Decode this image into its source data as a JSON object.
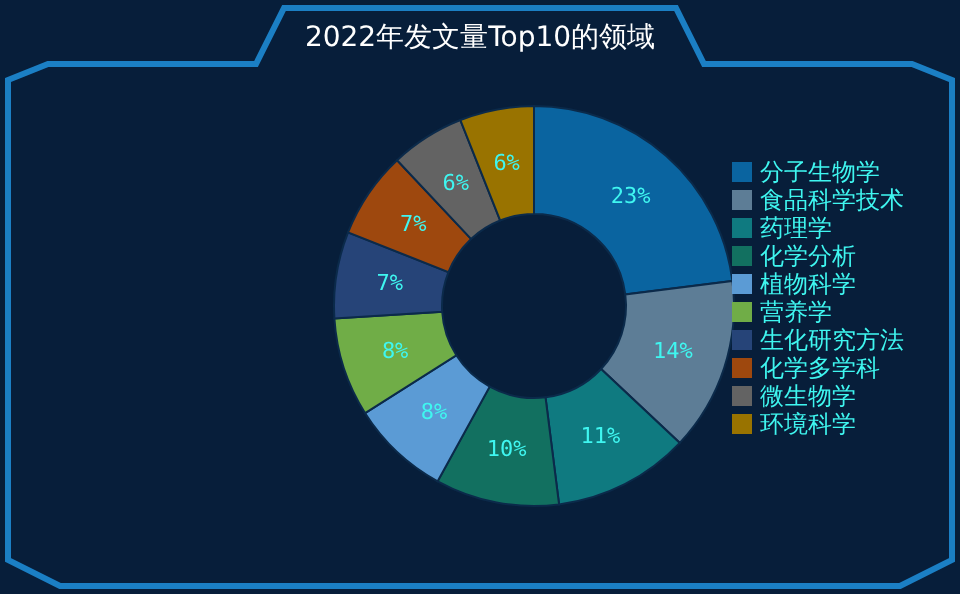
{
  "chart_data": {
    "type": "donut",
    "title": "2022年发文量Top10的领域",
    "categories": [
      "分子生物学",
      "食品科学技术",
      "药理学",
      "化学分析",
      "植物科学",
      "营养学",
      "生化研究方法",
      "化学多学科",
      "微生物学",
      "环境科学"
    ],
    "values": [
      23,
      14,
      11,
      10,
      8,
      8,
      7,
      7,
      6,
      6
    ],
    "value_labels": [
      "23%",
      "14%",
      "11%",
      "10%",
      "8%",
      "8%",
      "7%",
      "7%",
      "6%",
      "6%"
    ],
    "colors": [
      "#0a64a0",
      "#5d7d96",
      "#0f7a80",
      "#127060",
      "#5b9bd5",
      "#70ad47",
      "#264478",
      "#9e480e",
      "#636363",
      "#997300"
    ],
    "legend": "right"
  }
}
